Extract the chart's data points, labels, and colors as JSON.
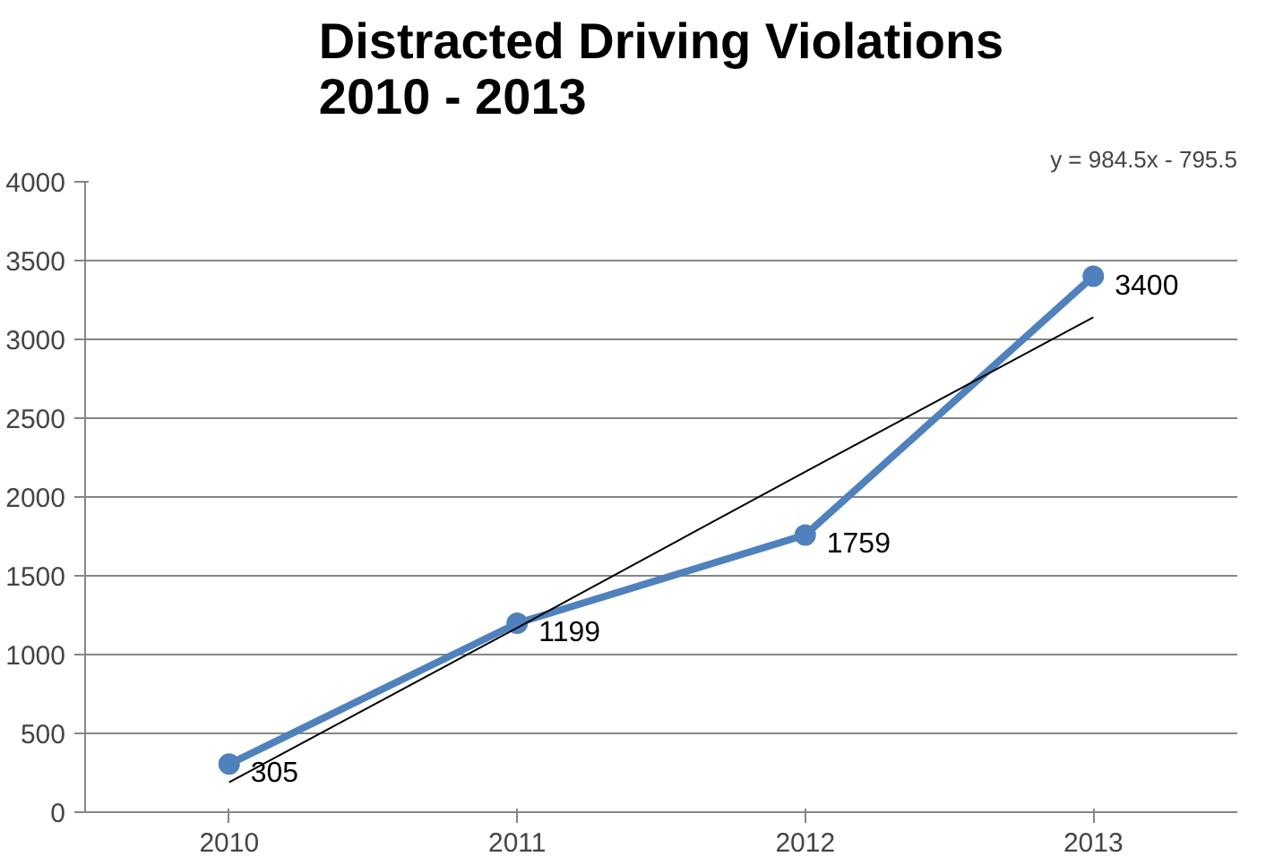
{
  "chart_data": {
    "type": "line",
    "title": "Distracted Driving Violations\n2010 - 2013",
    "categories": [
      "2010",
      "2011",
      "2012",
      "2013"
    ],
    "series": [
      {
        "color": "#4f81bd",
        "values": [
          305,
          1199,
          1759,
          3400
        ],
        "marker": "circle",
        "value_labels": [
          "305",
          "1199",
          "1759",
          "3400"
        ]
      },
      {
        "color": "#000000",
        "values": [
          190,
          1170,
          2160,
          3140
        ],
        "marker": "none"
      }
    ],
    "annotations": [
      "y = 984.5x - 795.5"
    ],
    "ylim": [
      0,
      4000
    ],
    "yticks": [
      0,
      500,
      1000,
      1500,
      2000,
      2500,
      3000,
      3500,
      4000
    ],
    "grid": "y"
  }
}
